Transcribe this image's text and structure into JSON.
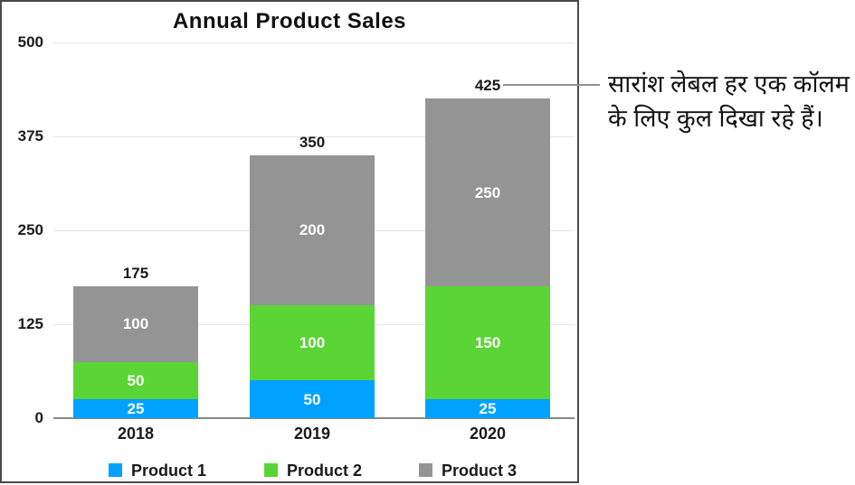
{
  "chart_data": {
    "type": "bar",
    "stacked": true,
    "title": "Annual Product Sales",
    "categories": [
      "2018",
      "2019",
      "2020"
    ],
    "series": [
      {
        "name": "Product 1",
        "color": "#00A2FF",
        "values": [
          25,
          50,
          25
        ]
      },
      {
        "name": "Product 2",
        "color": "#5BD435",
        "values": [
          50,
          100,
          150
        ]
      },
      {
        "name": "Product 3",
        "color": "#949494",
        "values": [
          100,
          200,
          250
        ]
      }
    ],
    "totals": [
      175,
      350,
      425
    ],
    "y_ticks": [
      0,
      125,
      250,
      375,
      500
    ],
    "ylim": [
      0,
      500
    ],
    "grid": true,
    "legend_position": "bottom",
    "colors": {
      "gridline": "#e4e4e4",
      "baseline": "#878787",
      "segment_label": "#ffffff",
      "tick_label": "#1a1a1a"
    }
  },
  "annotation": {
    "text_line1": "सारांश लेबल हर एक कॉलम",
    "text_line2": "के लिए कुल दिखा रहे हैं।",
    "connected_to_total": "425"
  }
}
